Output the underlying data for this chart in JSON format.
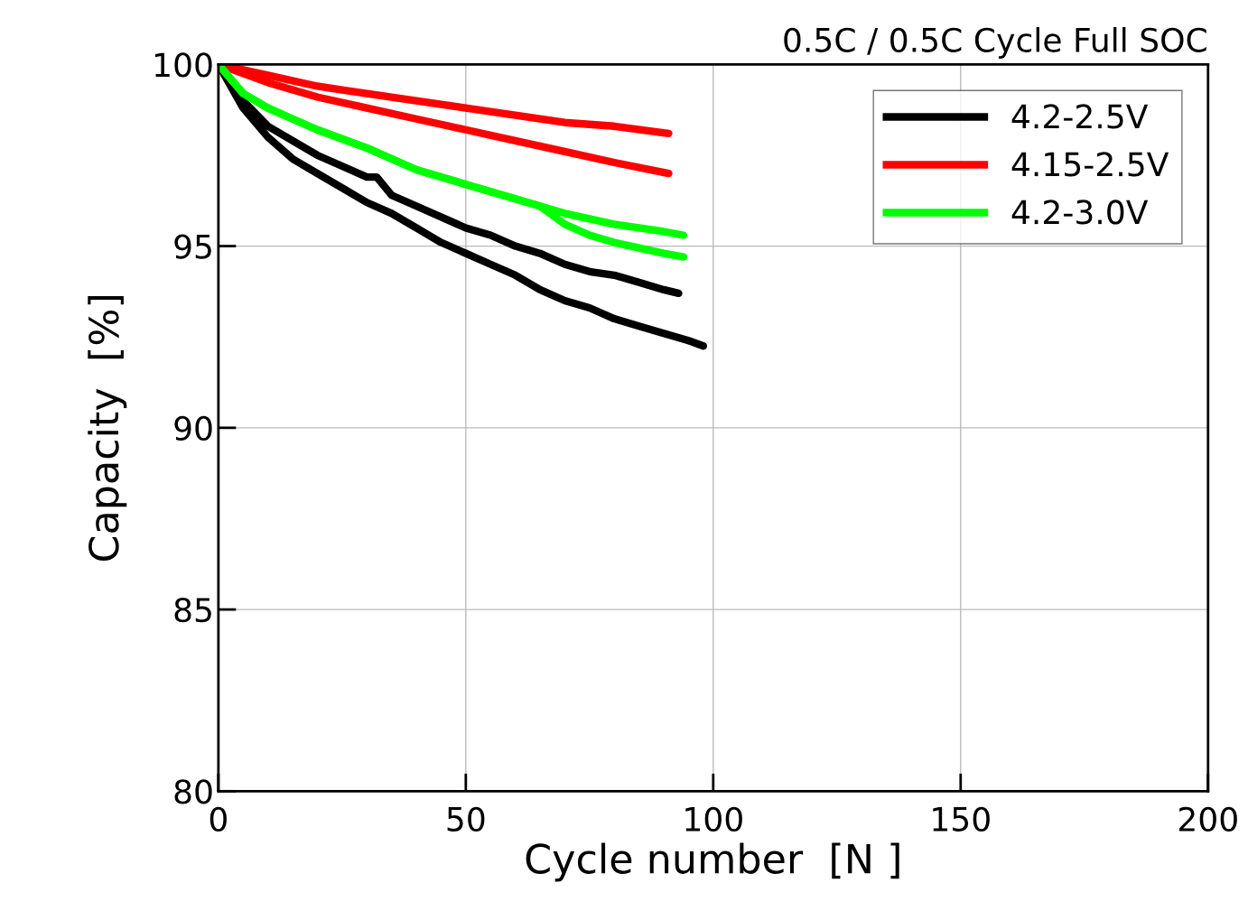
{
  "chart_data": {
    "type": "line",
    "title": "0.5C / 0.5C Cycle Full SOC",
    "xlabel": "Cycle number  [N ]",
    "ylabel": "Capacity  [%]",
    "xlim": [
      0,
      200
    ],
    "xticks": [
      0,
      50,
      100,
      150,
      200
    ],
    "ylim": [
      80,
      100
    ],
    "yticks": [
      80,
      85,
      90,
      95,
      100
    ],
    "grid": true,
    "legend": "top right",
    "marker": "none",
    "line_style": "solid",
    "series": [
      {
        "name": "4.2-2.5V",
        "color": "#000000",
        "x": [
          0,
          5,
          10,
          15,
          20,
          25,
          30,
          32,
          35,
          40,
          50,
          55,
          60,
          65,
          70,
          75,
          80,
          85,
          90,
          93
        ],
        "values": [
          100,
          99.0,
          98.3,
          97.9,
          97.5,
          97.2,
          96.9,
          96.9,
          96.4,
          96.1,
          95.5,
          95.3,
          95.0,
          94.8,
          94.5,
          94.3,
          94.2,
          94.0,
          93.8,
          93.7
        ]
      },
      {
        "color": "#000000",
        "x": [
          0,
          5,
          10,
          15,
          20,
          25,
          30,
          35,
          40,
          45,
          50,
          55,
          60,
          65,
          70,
          75,
          80,
          85,
          90,
          95,
          98
        ],
        "values": [
          100,
          98.8,
          98.0,
          97.4,
          97.0,
          96.6,
          96.2,
          95.9,
          95.5,
          95.1,
          94.8,
          94.5,
          94.2,
          93.8,
          93.5,
          93.3,
          93.0,
          92.8,
          92.6,
          92.4,
          92.25
        ]
      },
      {
        "name": "4.15-2.5V",
        "color": "#ff0000",
        "x": [
          0,
          10,
          20,
          25,
          30,
          40,
          50,
          60,
          70,
          80,
          91
        ],
        "values": [
          100,
          99.7,
          99.4,
          99.3,
          99.2,
          99.0,
          98.8,
          98.6,
          98.4,
          98.3,
          98.1
        ]
      },
      {
        "color": "#ff0000",
        "x": [
          0,
          10,
          20,
          30,
          40,
          50,
          60,
          70,
          80,
          91
        ],
        "values": [
          100,
          99.5,
          99.1,
          98.8,
          98.5,
          98.2,
          97.9,
          97.6,
          97.3,
          97.0
        ]
      },
      {
        "name": "4.2-3.0V",
        "color": "#00ff00",
        "x": [
          0,
          5,
          10,
          15,
          20,
          30,
          40,
          50,
          60,
          65,
          70,
          80,
          90,
          94
        ],
        "values": [
          100,
          99.2,
          98.8,
          98.5,
          98.2,
          97.7,
          97.1,
          96.7,
          96.3,
          96.1,
          95.9,
          95.6,
          95.4,
          95.3
        ]
      },
      {
        "color": "#00ff00",
        "x": [
          0,
          5,
          10,
          15,
          20,
          30,
          40,
          50,
          60,
          65,
          70,
          75,
          80,
          90,
          94
        ],
        "values": [
          100,
          99.2,
          98.8,
          98.5,
          98.2,
          97.7,
          97.1,
          96.7,
          96.3,
          96.1,
          95.6,
          95.3,
          95.1,
          94.8,
          94.7
        ]
      }
    ]
  }
}
